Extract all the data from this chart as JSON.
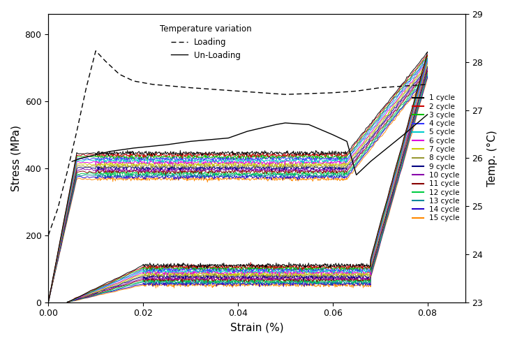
{
  "xlabel": "Strain (%)",
  "ylabel": "Stress (MPa)",
  "ylabel2": "Temp. (°C)",
  "xlim": [
    0.0,
    0.088
  ],
  "ylim": [
    0,
    860
  ],
  "ylim2": [
    23,
    29
  ],
  "xticks": [
    0.0,
    0.02,
    0.04,
    0.06,
    0.08
  ],
  "yticks": [
    0,
    200,
    400,
    600,
    800
  ],
  "yticks2": [
    23,
    24,
    25,
    26,
    27,
    28,
    29
  ],
  "cycle_colors": [
    "#000000",
    "#cc0000",
    "#00bb00",
    "#3333ff",
    "#00cccc",
    "#dd00dd",
    "#cccc00",
    "#999933",
    "#000080",
    "#8800aa",
    "#880000",
    "#00cc44",
    "#008899",
    "#2200cc",
    "#ff8800"
  ],
  "cycle_labels": [
    "1 cycle",
    "2 cycle",
    "3 cycle",
    "4 cycle",
    "5 cycle",
    "6 cycle",
    "7 cycle",
    "8 cycle",
    "9 cycle",
    "10 cycle",
    "11 cycle",
    "12 cycle",
    "13 cycle",
    "14 cycle",
    "15 cycle"
  ],
  "legend_title": "Temperature variation",
  "legend_loading": "Loading",
  "legend_unloading": "Un-Loading",
  "temp_loading_strain": [
    0.0,
    0.002,
    0.004,
    0.006,
    0.008,
    0.01,
    0.012,
    0.015,
    0.018,
    0.022,
    0.03,
    0.04,
    0.05,
    0.06,
    0.065,
    0.07,
    0.08
  ],
  "temp_loading_stress": [
    200,
    280,
    390,
    510,
    640,
    750,
    720,
    680,
    660,
    650,
    640,
    630,
    620,
    625,
    630,
    640,
    650
  ],
  "temp_unloading_strain": [
    0.005,
    0.007,
    0.01,
    0.013,
    0.018,
    0.025,
    0.03,
    0.038,
    0.042,
    0.048,
    0.05,
    0.055,
    0.06,
    0.063,
    0.065,
    0.068,
    0.075,
    0.08
  ],
  "temp_unloading_stress": [
    420,
    430,
    440,
    450,
    460,
    470,
    480,
    490,
    510,
    530,
    535,
    530,
    500,
    480,
    380,
    420,
    500,
    560
  ]
}
